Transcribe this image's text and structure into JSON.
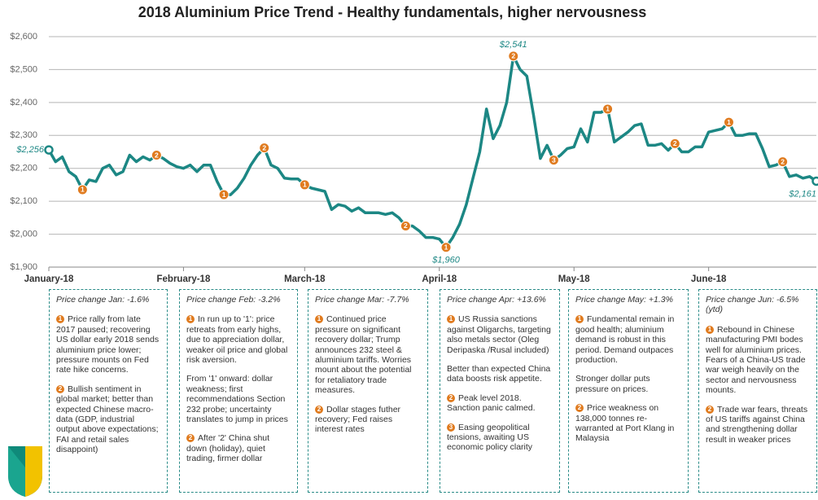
{
  "chart_data": {
    "type": "line",
    "title": "2018 Aluminium Price Trend - Healthy fundamentals, higher nervousness",
    "color": "#1c8784",
    "marker_color": "#e07b1f",
    "grid": true,
    "ylim": [
      1900,
      2600
    ],
    "yticks": [
      {
        "value": 1900,
        "label": "$1,900"
      },
      {
        "value": 2000,
        "label": "$2,000"
      },
      {
        "value": 2100,
        "label": "$2,100"
      },
      {
        "value": 2200,
        "label": "$2,200"
      },
      {
        "value": 2300,
        "label": "$2,300"
      },
      {
        "value": 2400,
        "label": "$2,400"
      },
      {
        "value": 2500,
        "label": "$2,500"
      },
      {
        "value": 2600,
        "label": "$2,600"
      }
    ],
    "categories": [
      "January-18",
      null,
      null,
      null,
      null,
      null,
      null,
      null,
      null,
      null,
      null,
      null,
      null,
      null,
      null,
      null,
      null,
      null,
      null,
      null,
      "February-18",
      null,
      null,
      null,
      null,
      null,
      null,
      null,
      null,
      null,
      null,
      null,
      null,
      null,
      null,
      null,
      null,
      null,
      "March-18",
      null,
      null,
      null,
      null,
      null,
      null,
      null,
      null,
      null,
      null,
      null,
      null,
      null,
      null,
      null,
      null,
      null,
      null,
      null,
      "April-18",
      null,
      null,
      null,
      null,
      null,
      null,
      null,
      null,
      null,
      null,
      null,
      null,
      null,
      null,
      null,
      null,
      null,
      null,
      null,
      "May-18",
      null,
      null,
      null,
      null,
      null,
      null,
      null,
      null,
      null,
      null,
      null,
      null,
      null,
      null,
      null,
      null,
      null,
      null,
      null,
      "June-18",
      null,
      null,
      null,
      null,
      null,
      null,
      null,
      null,
      null,
      null,
      null,
      null,
      null,
      null,
      null,
      null
    ],
    "values": [
      2256,
      2220,
      2235,
      2190,
      2175,
      2135,
      2165,
      2160,
      2200,
      2210,
      2180,
      2190,
      2240,
      2220,
      2235,
      2225,
      2240,
      2230,
      2215,
      2205,
      2200,
      2210,
      2190,
      2210,
      2210,
      2160,
      2120,
      2120,
      2140,
      2170,
      2210,
      2240,
      2262,
      2210,
      2200,
      2170,
      2168,
      2168,
      2150,
      2140,
      2135,
      2130,
      2075,
      2090,
      2085,
      2070,
      2080,
      2065,
      2065,
      2065,
      2060,
      2065,
      2050,
      2025,
      2025,
      2010,
      1990,
      1990,
      1985,
      1960,
      1990,
      2030,
      2090,
      2170,
      2250,
      2380,
      2290,
      2330,
      2400,
      2541,
      2500,
      2480,
      2360,
      2230,
      2270,
      2225,
      2240,
      2260,
      2265,
      2320,
      2280,
      2370,
      2370,
      2380,
      2280,
      2295,
      2310,
      2330,
      2335,
      2270,
      2270,
      2275,
      2255,
      2275,
      2250,
      2250,
      2265,
      2265,
      2310,
      2315,
      2320,
      2340,
      2300,
      2300,
      2305,
      2305,
      2260,
      2205,
      2210,
      2220,
      2175,
      2180,
      2170,
      2175,
      2161
    ],
    "value_labels": [
      "$2,256",
      null,
      null,
      null,
      null,
      null,
      null,
      null,
      null,
      null,
      null,
      null,
      null,
      null,
      null,
      null,
      null,
      null,
      null,
      null,
      null,
      null,
      null,
      null,
      null,
      null,
      null,
      null,
      null,
      null,
      null,
      null,
      null,
      null,
      null,
      null,
      null,
      null,
      null,
      null,
      null,
      null,
      null,
      null,
      null,
      null,
      null,
      null,
      null,
      null,
      null,
      null,
      null,
      null,
      null,
      null,
      null,
      null,
      null,
      "$1,960",
      null,
      null,
      null,
      null,
      null,
      null,
      null,
      null,
      null,
      "$2,541",
      null,
      null,
      null,
      null,
      null,
      null,
      null,
      null,
      null,
      null,
      null,
      null,
      null,
      null,
      null,
      null,
      null,
      null,
      null,
      null,
      null,
      null,
      null,
      null,
      null,
      null,
      null,
      null,
      null,
      null,
      null,
      null,
      null,
      null,
      null,
      null,
      null,
      null,
      null,
      null,
      null,
      null,
      null,
      null,
      "$2,161"
    ],
    "markers": [
      null,
      null,
      null,
      null,
      null,
      "1",
      null,
      null,
      null,
      null,
      null,
      null,
      null,
      null,
      null,
      null,
      "2",
      null,
      null,
      null,
      null,
      null,
      null,
      null,
      null,
      null,
      "1",
      null,
      null,
      null,
      null,
      null,
      "2",
      null,
      null,
      null,
      null,
      null,
      "1",
      null,
      null,
      null,
      null,
      null,
      null,
      null,
      null,
      null,
      null,
      null,
      null,
      null,
      null,
      "2",
      null,
      null,
      null,
      null,
      null,
      "1",
      null,
      null,
      null,
      null,
      null,
      null,
      null,
      null,
      null,
      "2",
      null,
      null,
      null,
      null,
      null,
      "3",
      null,
      null,
      null,
      null,
      null,
      null,
      null,
      "1",
      null,
      null,
      null,
      null,
      null,
      null,
      null,
      null,
      null,
      "2",
      null,
      null,
      null,
      null,
      null,
      null,
      null,
      "1",
      null,
      null,
      null,
      null,
      null,
      null,
      null,
      "2",
      null,
      null,
      null,
      null,
      null
    ]
  },
  "boxes": [
    {
      "heading": "Price change Jan: -1.6%",
      "items": [
        {
          "marker": "1",
          "text": "Price rally from late 2017 paused; recovering US dollar early 2018 sends aluminium price lower; pressure mounts on Fed rate hike concerns."
        },
        {
          "marker": "2",
          "text": "Bullish sentiment in global market; better than expected Chinese macro-data (GDP, industrial output above expectations; FAI and retail sales disappoint)"
        }
      ]
    },
    {
      "heading": "Price change Feb: -3.2%",
      "items": [
        {
          "marker": "1",
          "text": "In run up to '1': price retreats from early highs, due to appreciation dollar, weaker oil price and global risk aversion."
        },
        {
          "text": "From '1' onward: dollar weakness; first recommendations Section 232 probe; uncertainty translates to jump in prices"
        },
        {
          "marker": "2",
          "text": "After '2' China shut down (holiday), quiet trading, firmer dollar"
        }
      ]
    },
    {
      "heading": "Price change Mar: -7.7%",
      "items": [
        {
          "marker": "1",
          "text": "Continued price pressure on significant recovery dollar; Trump announces 232 steel & aluminium tariffs. Worries mount about the potential for retaliatory trade measures."
        },
        {
          "marker": "2",
          "text": "Dollar stages futher recovery; Fed raises interest rates"
        }
      ]
    },
    {
      "heading": "Price change Apr: +13.6%",
      "items": [
        {
          "marker": "1",
          "text": "US Russia sanctions against Oligarchs, targeting also metals sector (Oleg Deripaska /Rusal included)"
        },
        {
          "text": "Better than expected China data boosts risk appetite."
        },
        {
          "marker": "2",
          "text": "Peak level 2018. Sanction panic calmed."
        },
        {
          "marker": "3",
          "text": "Easing geopolitical tensions, awaiting US economic policy clarity"
        }
      ]
    },
    {
      "heading": "Price change May: +1.3%",
      "items": [
        {
          "marker": "1",
          "text": "Fundamental remain in good health; aluminium demand is robust in this period. Demand outpaces production."
        },
        {
          "text": "Stronger dollar puts pressure on prices."
        },
        {
          "marker": "2",
          "text": "Price weakness on 138,000 tonnes re-warranted at Port Klang in Malaysia"
        }
      ]
    },
    {
      "heading": "Price change Jun: -6.5% (ytd)",
      "items": [
        {
          "marker": "1",
          "text": "Rebound in Chinese manufacturing PMI bodes well for aluminium prices. Fears of a China-US trade war weigh heavily on the sector and nervousness mounts."
        },
        {
          "marker": "2",
          "text": "Trade war fears, threats of US tariffs against China and strengthening dollar result in weaker prices"
        }
      ]
    }
  ]
}
